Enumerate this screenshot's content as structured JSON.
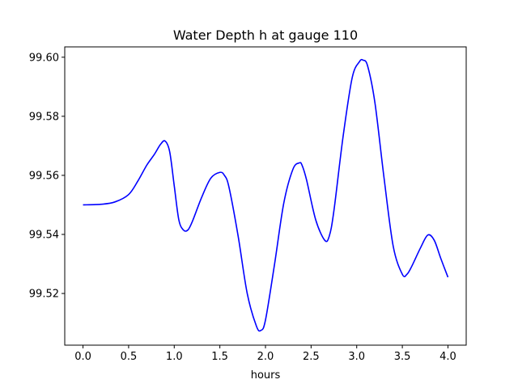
{
  "chart_data": {
    "type": "line",
    "title": "Water Depth h at gauge 110",
    "xlabel": "hours",
    "ylabel": "",
    "xlim": [
      -0.2,
      4.2
    ],
    "ylim": [
      99.5025,
      99.6035
    ],
    "x_ticks": [
      0.0,
      0.5,
      1.0,
      1.5,
      2.0,
      2.5,
      3.0,
      3.5,
      4.0
    ],
    "x_tick_labels": [
      "0.0",
      "0.5",
      "1.0",
      "1.5",
      "2.0",
      "2.5",
      "3.0",
      "3.5",
      "4.0"
    ],
    "y_ticks": [
      99.52,
      99.54,
      99.56,
      99.58,
      99.6
    ],
    "y_tick_labels": [
      "99.52",
      "99.54",
      "99.56",
      "99.58",
      "99.60"
    ],
    "grid": false,
    "legend": "none",
    "series": [
      {
        "color": "#0000ff",
        "x": [
          0.0,
          0.2,
          0.35,
          0.5,
          0.6,
          0.7,
          0.78,
          0.85,
          0.9,
          0.95,
          1.0,
          1.05,
          1.1,
          1.15,
          1.2,
          1.3,
          1.4,
          1.5,
          1.55,
          1.6,
          1.7,
          1.8,
          1.9,
          1.95,
          2.0,
          2.1,
          2.2,
          2.3,
          2.37,
          2.4,
          2.45,
          2.55,
          2.65,
          2.7,
          2.75,
          2.85,
          2.95,
          3.03,
          3.07,
          3.12,
          3.2,
          3.3,
          3.4,
          3.5,
          3.55,
          3.6,
          3.7,
          3.78,
          3.85,
          3.92,
          4.0
        ],
        "y": [
          99.55,
          99.5502,
          99.551,
          99.5535,
          99.558,
          99.5635,
          99.567,
          99.5705,
          99.5716,
          99.568,
          99.5565,
          99.545,
          99.5415,
          99.5415,
          99.5445,
          99.5525,
          99.559,
          99.561,
          99.56,
          99.556,
          99.5395,
          99.52,
          99.509,
          99.5075,
          99.511,
          99.53,
          99.5505,
          99.562,
          99.5642,
          99.5635,
          99.5585,
          99.545,
          99.538,
          99.5395,
          99.548,
          99.573,
          99.593,
          99.5985,
          99.599,
          99.597,
          99.5845,
          99.559,
          99.536,
          99.5265,
          99.5265,
          99.529,
          99.5355,
          99.5398,
          99.538,
          99.532,
          99.5255
        ]
      }
    ]
  }
}
